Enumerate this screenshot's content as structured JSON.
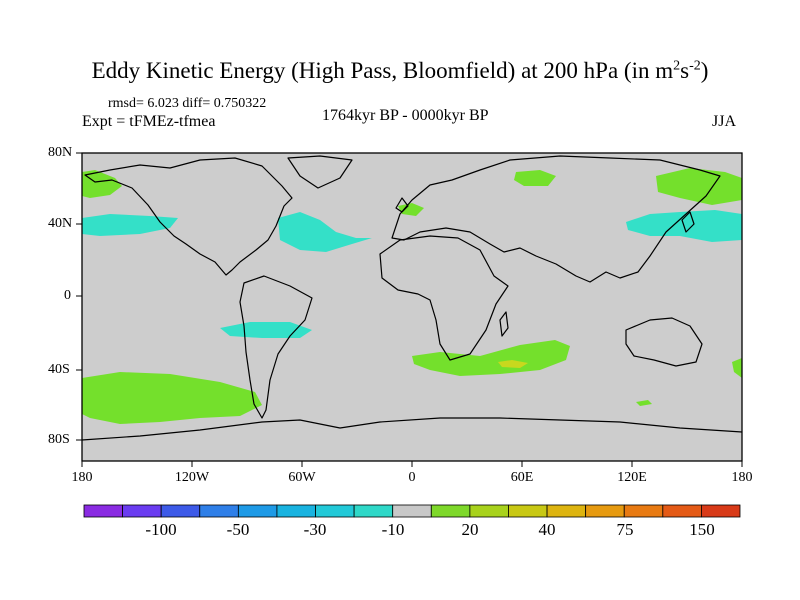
{
  "title": "Eddy Kinetic Energy (High Pass, Bloomfield) at 200 hPa (in m",
  "title_unit_sup1": "2",
  "title_unit_mid": "s",
  "title_unit_sup2": "-2",
  "title_close": ")",
  "stats": "rmsd= 6.023 diff= 0.750322",
  "experiment": "Expt = tFMEz-tfmea",
  "period": "1764kyr BP - 0000kyr BP",
  "season": "JJA",
  "lat_labels": [
    "80N",
    "40N",
    "0",
    "40S",
    "80S"
  ],
  "lon_labels": [
    "180",
    "120W",
    "60W",
    "0",
    "60E",
    "120E",
    "180"
  ],
  "colorbar": {
    "colors": [
      "#8a2be2",
      "#6a3cf0",
      "#3d5ae8",
      "#2f7fe8",
      "#1e9ae6",
      "#19b3e0",
      "#22c9d8",
      "#2fd8c8",
      "#c8c8c8",
      "#7ed82a",
      "#a8d21c",
      "#c8c814",
      "#ddb410",
      "#e69a10",
      "#e87a12",
      "#e45a16",
      "#d83a18"
    ],
    "tick_labels": [
      "-100",
      "-50",
      "-30",
      "-10",
      "20",
      "40",
      "75",
      "150"
    ]
  },
  "map": {
    "background_color": "#cdcdcd",
    "positive_color": "#74e02c",
    "negative_color": "#34e0c8",
    "peak_color": "#c8d81e"
  }
}
